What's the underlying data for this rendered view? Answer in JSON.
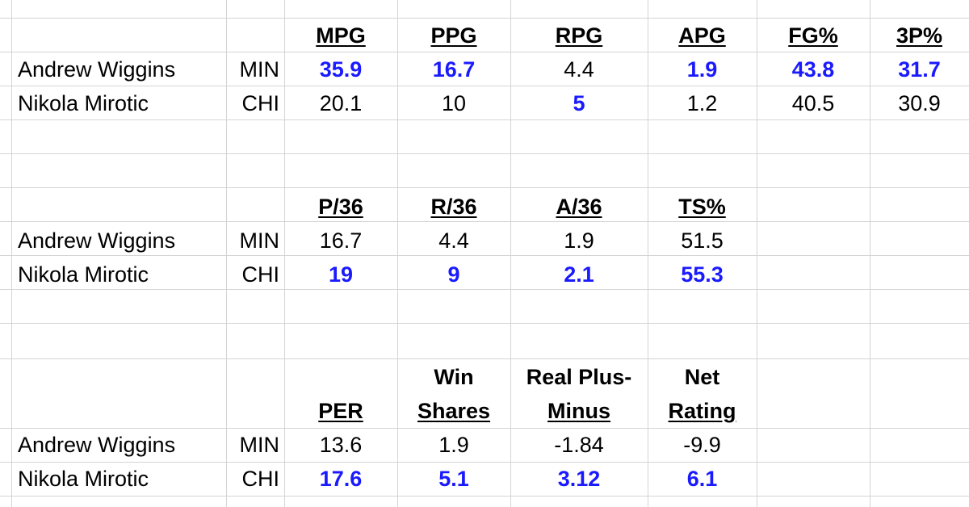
{
  "colors": {
    "highlight": "#1a1aff",
    "text": "#000000",
    "gridline": "#d4d4d4",
    "background": "#ffffff"
  },
  "section1": {
    "headers": [
      "MPG",
      "PPG",
      "RPG",
      "APG",
      "FG%",
      "3P%"
    ],
    "rows": [
      {
        "player": "Andrew Wiggins",
        "team": "MIN",
        "values": [
          "35.9",
          "16.7",
          "4.4",
          "1.9",
          "43.8",
          "31.7"
        ],
        "highlighted": [
          true,
          true,
          false,
          true,
          true,
          true
        ]
      },
      {
        "player": "Nikola Mirotic",
        "team": "CHI",
        "values": [
          "20.1",
          "10",
          "5",
          "1.2",
          "40.5",
          "30.9"
        ],
        "highlighted": [
          false,
          false,
          true,
          false,
          false,
          false
        ]
      }
    ]
  },
  "section2": {
    "headers": [
      "P/36",
      "R/36",
      "A/36",
      "TS%"
    ],
    "rows": [
      {
        "player": "Andrew Wiggins",
        "team": "MIN",
        "values": [
          "16.7",
          "4.4",
          "1.9",
          "51.5"
        ],
        "highlighted": [
          false,
          false,
          false,
          false
        ]
      },
      {
        "player": "Nikola Mirotic",
        "team": "CHI",
        "values": [
          "19",
          "9",
          "2.1",
          "55.3"
        ],
        "highlighted": [
          true,
          true,
          true,
          true
        ]
      }
    ]
  },
  "section3": {
    "headers_line1": [
      "",
      "Win",
      "Real Plus-",
      "Net"
    ],
    "headers_line2": [
      "PER",
      "Shares",
      "Minus",
      "Rating"
    ],
    "rows": [
      {
        "player": "Andrew Wiggins",
        "team": "MIN",
        "values": [
          "13.6",
          "1.9",
          "-1.84",
          "-9.9"
        ],
        "highlighted": [
          false,
          false,
          false,
          false
        ]
      },
      {
        "player": "Nikola Mirotic",
        "team": "CHI",
        "values": [
          "17.6",
          "5.1",
          "3.12",
          "6.1"
        ],
        "highlighted": [
          true,
          true,
          true,
          true
        ]
      }
    ]
  }
}
